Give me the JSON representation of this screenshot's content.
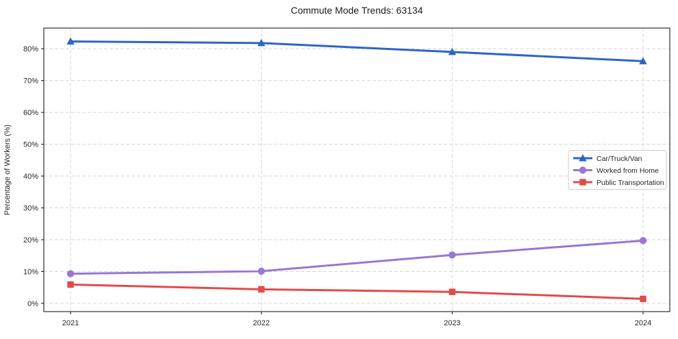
{
  "figure": {
    "background": "#ffffff"
  },
  "chart_data": {
    "type": "line",
    "title": "Commute Mode Trends: 63134",
    "xlabel": "",
    "ylabel": "Percentage of Workers (%)",
    "x": [
      2021,
      2022,
      2023,
      2024
    ],
    "x_tick_labels": [
      "2021",
      "2022",
      "2023",
      "2024"
    ],
    "y_ticks": [
      0,
      10,
      20,
      30,
      40,
      50,
      60,
      70,
      80
    ],
    "y_tick_labels": [
      "0%",
      "10%",
      "20%",
      "30%",
      "40%",
      "50%",
      "60%",
      "70%",
      "80%"
    ],
    "xlim": [
      2020.86,
      2024.14
    ],
    "ylim": [
      -2.6,
      86.5
    ],
    "grid": true,
    "grid_style": "dashed",
    "series": [
      {
        "name": "Car/Truck/Van",
        "marker": "triangle",
        "color": "#2d64c8",
        "values": [
          82.3,
          81.8,
          79.0,
          76.1
        ]
      },
      {
        "name": "Worked from Home",
        "marker": "circle",
        "color": "#9877d6",
        "values": [
          9.3,
          10.1,
          15.2,
          19.7
        ]
      },
      {
        "name": "Public Transportation",
        "marker": "square",
        "color": "#e24a4a",
        "values": [
          5.9,
          4.4,
          3.6,
          1.4
        ]
      }
    ],
    "legend": {
      "position": "center-right",
      "entries": [
        "Car/Truck/Van",
        "Worked from Home",
        "Public Transportation"
      ]
    },
    "colors": {
      "grid": "#d6d6d6",
      "axis": "#1a1a1a",
      "tick_label": "#262626",
      "title": "#1a1a1a",
      "legend_border": "#cccccc",
      "legend_bg": "#ffffff"
    }
  }
}
